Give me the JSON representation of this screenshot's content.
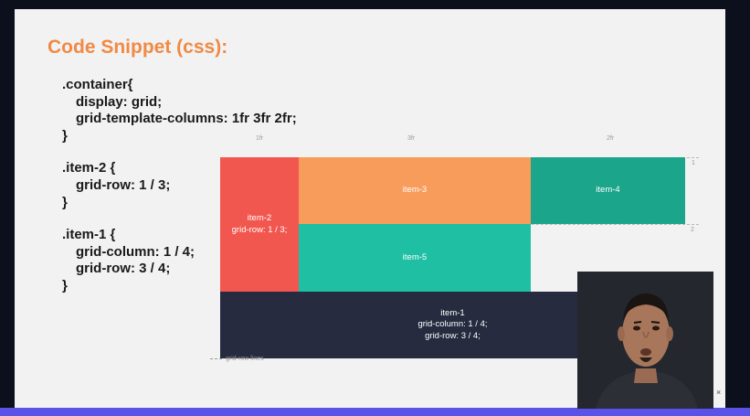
{
  "slide": {
    "title": "Code Snippet (css):",
    "code": {
      "container_open": ".container{",
      "display": "display: grid;",
      "template": "grid-template-columns: 1fr 3fr 2fr;",
      "container_close": "}",
      "item2_open": ".item-2 {",
      "item2_row": "grid-row: 1 / 3;",
      "item2_close": "}",
      "item1_open": ".item-1 {",
      "item1_col": "grid-column: 1 / 4;",
      "item1_row": "grid-row: 3 / 4;",
      "item1_close": "}"
    }
  },
  "grid_demo": {
    "column_labels": [
      "1fr",
      "3fr",
      "2fr"
    ],
    "row_line_labels": [
      "1",
      "2"
    ],
    "item2": {
      "name": "item-2",
      "rule": "grid-row: 1 / 3;"
    },
    "item3": {
      "name": "item-3"
    },
    "item4": {
      "name": "item-4"
    },
    "item5": {
      "name": "item-5"
    },
    "item1": {
      "name": "item-1",
      "rule_col": "grid-column: 1 / 4;",
      "rule_row": "grid-row: 3 / 4;"
    },
    "legend": "grid-row lines",
    "colors": {
      "item1": "#262b40",
      "item2": "#f2574f",
      "item3": "#f89c5c",
      "item4": "#1ba58a",
      "item5": "#1ebfa3"
    }
  },
  "title_color": "#f08a45",
  "webcam": {
    "icon": "presenter-video-feed"
  }
}
